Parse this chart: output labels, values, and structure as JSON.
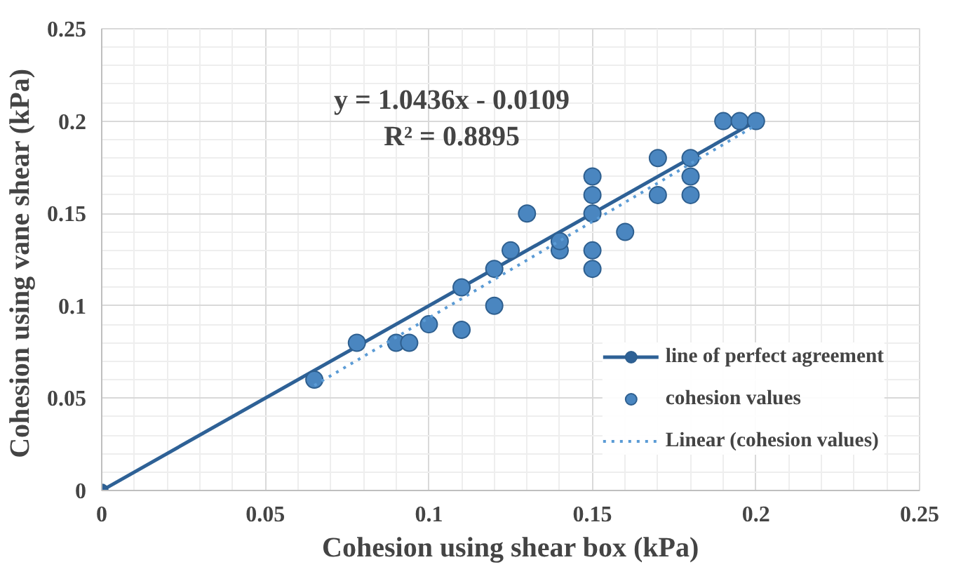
{
  "chart_data": {
    "type": "scatter",
    "xlabel": "Cohesion using shear box (kPa)",
    "ylabel": "Cohesion  using vane shear (kPa)",
    "annotations": [
      "y = 1.0436x - 0.0109",
      "R² = 0.8895"
    ],
    "xlim": [
      0,
      0.25
    ],
    "ylim": [
      0,
      0.25
    ],
    "xticks": [
      0,
      0.05,
      0.1,
      0.15,
      0.2,
      0.25
    ],
    "yticks": [
      0,
      0.05,
      0.1,
      0.15,
      0.2,
      0.25
    ],
    "grid": true,
    "legend": "bottom right",
    "series": [
      {
        "name": "line of perfect agreement",
        "type": "line",
        "marker": "circle",
        "line_style": "solid",
        "color": "#2e6196",
        "x": [
          0,
          0.2
        ],
        "values": [
          0,
          0.2
        ]
      },
      {
        "name": "cohesion values",
        "marker": "circle",
        "color": "#4a86c0",
        "x": [
          0.065,
          0.078,
          0.09,
          0.094,
          0.1,
          0.11,
          0.11,
          0.12,
          0.12,
          0.125,
          0.13,
          0.14,
          0.14,
          0.15,
          0.15,
          0.15,
          0.15,
          0.15,
          0.16,
          0.17,
          0.17,
          0.18,
          0.18,
          0.18,
          0.19,
          0.195,
          0.2
        ],
        "values": [
          0.06,
          0.08,
          0.08,
          0.08,
          0.09,
          0.087,
          0.11,
          0.1,
          0.12,
          0.13,
          0.15,
          0.13,
          0.135,
          0.17,
          0.16,
          0.15,
          0.13,
          0.12,
          0.14,
          0.18,
          0.16,
          0.18,
          0.17,
          0.16,
          0.2,
          0.2,
          0.2
        ]
      },
      {
        "name": "Linear (cohesion values)",
        "type": "line",
        "marker": "none",
        "line_style": "dotted",
        "color": "#5b9bd5",
        "x": [
          0.065,
          0.2
        ],
        "values": [
          0.0569,
          0.1978
        ]
      }
    ]
  }
}
